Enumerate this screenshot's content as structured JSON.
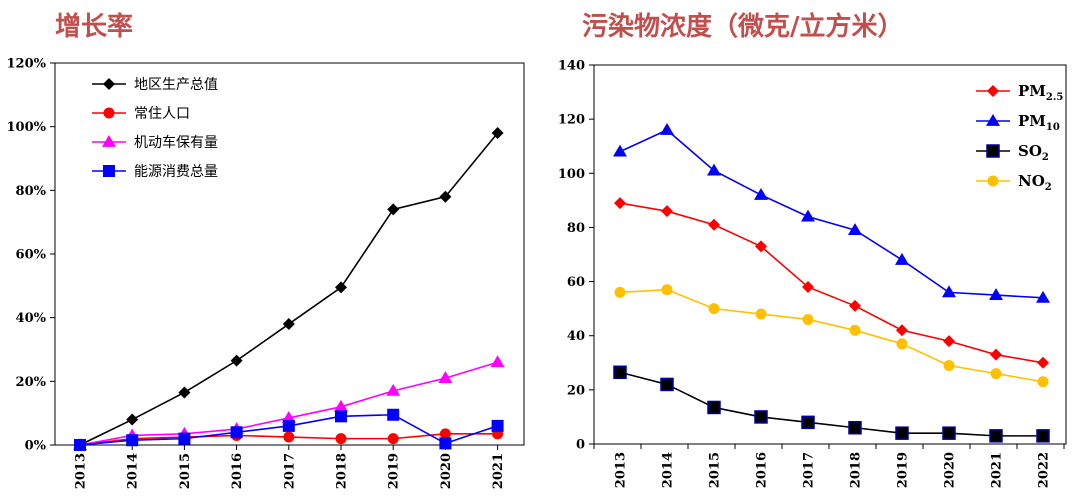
{
  "titles": {
    "left": "增长率",
    "right": "污染物浓度（微克/立方米）"
  },
  "chart_data": [
    {
      "type": "line",
      "title": "增长率",
      "x": [
        "2013",
        "2014",
        "2015",
        "2016",
        "2017",
        "2018",
        "2019",
        "2020",
        "2021"
      ],
      "ylim": [
        0,
        120
      ],
      "yticks": [
        "0%",
        "20%",
        "40%",
        "60%",
        "80%",
        "100%",
        "120%"
      ],
      "ytick_values": [
        0,
        20,
        40,
        60,
        80,
        100,
        120
      ],
      "grid": false,
      "legend": "top-left",
      "series": [
        {
          "name": "地区生产总值",
          "marker": "diamond",
          "color": "#000000",
          "values": [
            0,
            8,
            16.5,
            26.5,
            38,
            49.5,
            74,
            78,
            98
          ]
        },
        {
          "name": "常住人口",
          "marker": "circle",
          "color": "#ff0000",
          "values": [
            0,
            2,
            2.5,
            3,
            2.5,
            2,
            2,
            3.5,
            3.5
          ]
        },
        {
          "name": "机动车保有量",
          "marker": "triangle",
          "color": "#ff00ff",
          "values": [
            0,
            3,
            3.5,
            5,
            8.5,
            12,
            17,
            21,
            26
          ]
        },
        {
          "name": "能源消费总量",
          "marker": "square",
          "color": "#0000ff",
          "values": [
            0,
            1.5,
            2,
            4,
            6,
            9,
            9.5,
            0.5,
            6
          ]
        }
      ]
    },
    {
      "type": "line",
      "title": "污染物浓度（微克/立方米）",
      "x": [
        "2013",
        "2014",
        "2015",
        "2016",
        "2017",
        "2018",
        "2019",
        "2020",
        "2021",
        "2022"
      ],
      "ylim": [
        0,
        140
      ],
      "yticks": [
        "0",
        "20",
        "40",
        "60",
        "80",
        "100",
        "120",
        "140"
      ],
      "ytick_values": [
        0,
        20,
        40,
        60,
        80,
        100,
        120,
        140
      ],
      "grid": false,
      "legend": "top-right",
      "series": [
        {
          "name": "PM",
          "sub": "2.5",
          "marker": "diamond",
          "color": "#ff0000",
          "values": [
            89,
            86,
            81,
            73,
            58,
            51,
            42,
            38,
            33,
            30
          ]
        },
        {
          "name": "PM",
          "sub": "10",
          "marker": "triangle",
          "color": "#0000ff",
          "values": [
            108,
            116,
            101,
            92,
            84,
            79,
            68,
            56,
            55,
            54
          ]
        },
        {
          "name": "SO",
          "sub": "2",
          "marker": "square",
          "color": "#000000",
          "line_color": "#000000",
          "values": [
            26.5,
            22,
            13.5,
            10,
            8,
            6,
            4,
            4,
            3,
            3
          ]
        },
        {
          "name": "NO",
          "sub": "2",
          "marker": "circle",
          "color": "#ffc000",
          "values": [
            56,
            57,
            50,
            48,
            46,
            42,
            37,
            29,
            26,
            23
          ]
        }
      ]
    }
  ]
}
